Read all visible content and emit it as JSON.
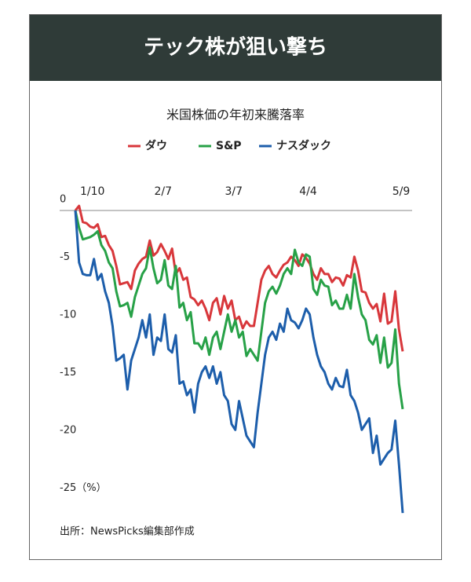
{
  "chart_data": {
    "type": "line",
    "title": "テック株が狙い撃ち",
    "subtitle": "米国株価の年初来騰落率",
    "source": "出所：NewsPicks編集部作成",
    "categories": [
      null,
      null,
      null,
      null,
      null,
      "1/10",
      null,
      null,
      null,
      null,
      null,
      null,
      null,
      null,
      null,
      null,
      null,
      null,
      null,
      null,
      null,
      null,
      null,
      null,
      "2/7",
      null,
      null,
      null,
      null,
      null,
      null,
      null,
      null,
      null,
      null,
      null,
      null,
      null,
      null,
      null,
      null,
      null,
      null,
      "3/7",
      null,
      null,
      null,
      null,
      null,
      null,
      null,
      null,
      null,
      null,
      null,
      null,
      null,
      null,
      null,
      null,
      null,
      null,
      null,
      "4/4",
      null,
      null,
      null,
      null,
      null,
      null,
      null,
      null,
      null,
      null,
      null,
      null,
      null,
      null,
      null,
      null,
      null,
      null,
      null,
      null,
      null,
      null,
      null,
      null,
      "5/9"
    ],
    "ylim": [
      -26.5,
      1
    ],
    "yticks": [
      0,
      -5,
      -10,
      -15,
      -20,
      {
        "value": -25,
        "label": "-25（%）"
      }
    ],
    "zero_line": true,
    "series": [
      {
        "name": "ダウ",
        "color": "#d8373b",
        "values": [
          0,
          0.4,
          -1,
          -1.1,
          -1.4,
          -1.5,
          -1.2,
          -2.3,
          -2.2,
          -3,
          -3.5,
          -4.8,
          -6.4,
          -6.3,
          -6.2,
          -6.8,
          -5.2,
          -4.6,
          -4.2,
          -4,
          -2.6,
          -3.9,
          -3.6,
          -2.9,
          -3.5,
          -4.2,
          -3.3,
          -5.5,
          -5,
          -6,
          -5.8,
          -7.5,
          -7.7,
          -8.2,
          -7.8,
          -8.5,
          -9.5,
          -8,
          -7.6,
          -9,
          -7.4,
          -8.5,
          -7.8,
          -9.5,
          -9.2,
          -10.2,
          -9.6,
          -10,
          -10,
          -8,
          -6,
          -5.2,
          -4.8,
          -5.5,
          -5.8,
          -5.2,
          -4.7,
          -4.5,
          -4,
          -4.3,
          -4.8,
          -3.8,
          -4.1,
          -4.6,
          -5.5,
          -6,
          -5,
          -5.5,
          -5.5,
          -6.2,
          -5.8,
          -5.9,
          -6.5,
          -5.6,
          -5.8,
          -4,
          -5.2,
          -7,
          -7.1,
          -8,
          -8.5,
          -8.1,
          -9.6,
          -7.2,
          -9.8,
          -9.6,
          -7,
          -10.3,
          -12.2
        ]
      },
      {
        "name": "S&P",
        "color": "#27a147",
        "values": [
          0,
          -1.5,
          -2.5,
          -2.4,
          -2.3,
          -2.1,
          -1.8,
          -3,
          -3.5,
          -4.5,
          -5,
          -7,
          -8.3,
          -8.2,
          -8,
          -9.2,
          -7.5,
          -6.5,
          -5.5,
          -5,
          -3.2,
          -5,
          -6.3,
          -6,
          -4.3,
          -6.5,
          -6.8,
          -4.8,
          -8.4,
          -8,
          -9.5,
          -8.8,
          -11.5,
          -11.5,
          -12,
          -11,
          -12.5,
          -11,
          -10.5,
          -12,
          -10.5,
          -9,
          -10.5,
          -9.5,
          -11,
          -10.5,
          -12.6,
          -12,
          -12.5,
          -13,
          -10.5,
          -8,
          -7,
          -6.6,
          -7.2,
          -6.5,
          -5.5,
          -5,
          -5.5,
          -3.4,
          -4.5,
          -4.8,
          -3.8,
          -4,
          -6.8,
          -7.3,
          -6,
          -6.5,
          -6.6,
          -8.2,
          -7.8,
          -8.5,
          -8.5,
          -7.3,
          -8.5,
          -5.5,
          -7.5,
          -9,
          -9.5,
          -11.2,
          -11.6,
          -10.8,
          -13.2,
          -11,
          -13.6,
          -13.2,
          -10.3,
          -15,
          -17.2
        ]
      },
      {
        "name": "ナスダック",
        "color": "#1d5eab",
        "values": [
          0,
          -4.5,
          -5.5,
          -5.6,
          -5.6,
          -4.2,
          -6,
          -5.5,
          -7,
          -8,
          -10,
          -13,
          -12.8,
          -12.5,
          -15.5,
          -13,
          -12,
          -11,
          -9.5,
          -11,
          -9,
          -12.5,
          -11,
          -11.3,
          -9,
          -12,
          -12.3,
          -10.8,
          -15,
          -14.8,
          -16,
          -15.5,
          -17.5,
          -15,
          -14,
          -13.5,
          -14.5,
          -13.5,
          -15,
          -14,
          -16,
          -16.5,
          -18.5,
          -19,
          -16.5,
          -18,
          -19.5,
          -20,
          -20.5,
          -17.5,
          -15,
          -12.5,
          -11,
          -10.5,
          -11.2,
          -9.8,
          -10.5,
          -8.5,
          -9.5,
          -9.7,
          -10.2,
          -9.5,
          -8.5,
          -9,
          -11,
          -12.5,
          -13.5,
          -14,
          -15,
          -15.5,
          -14.5,
          -15.2,
          -15.3,
          -13.8,
          -16,
          -16.5,
          -17.5,
          -19,
          -18.5,
          -18,
          -21,
          -19.5,
          -22,
          -21.5,
          -21,
          -20.7,
          -18.2,
          -22,
          -26.2
        ]
      }
    ]
  }
}
